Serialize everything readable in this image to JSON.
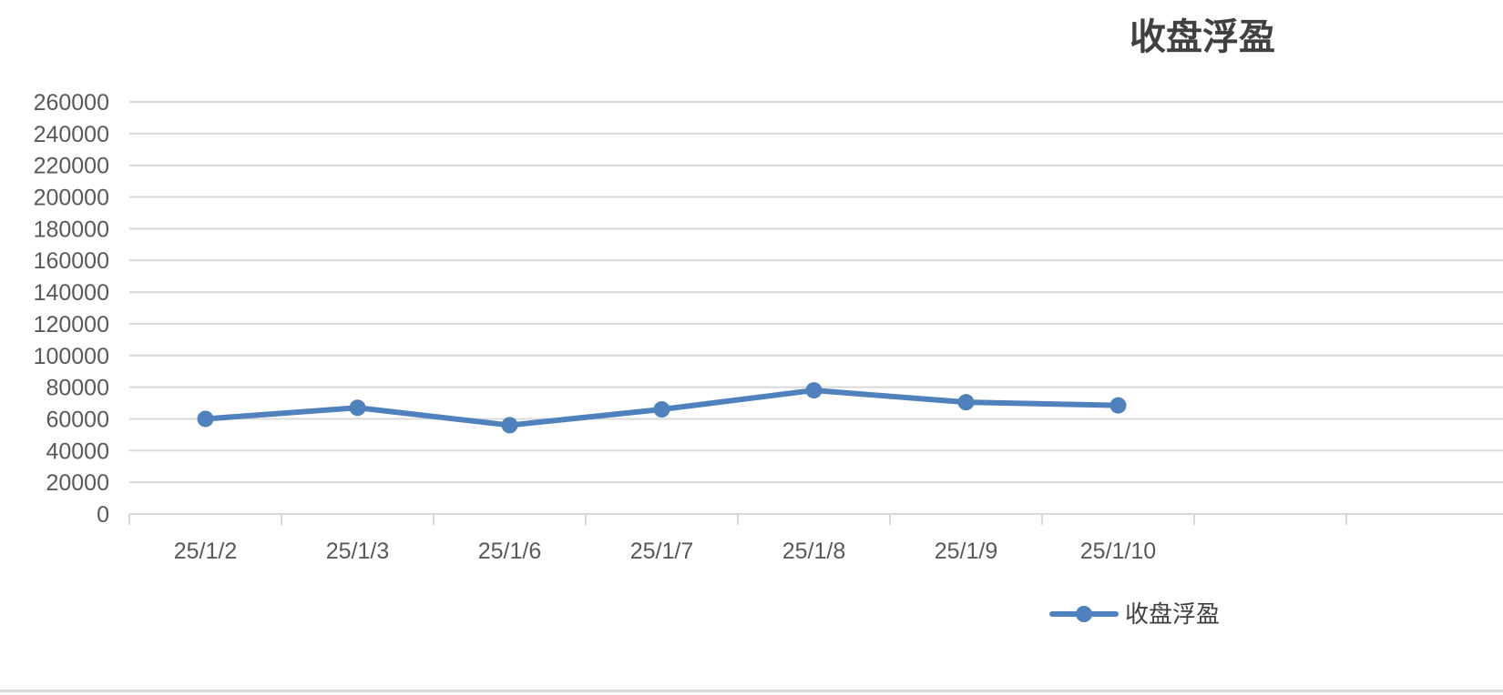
{
  "chart_data": {
    "type": "line",
    "title": "收盘浮盈",
    "xlabel": "",
    "ylabel": "",
    "categories": [
      "25/1/2",
      "25/1/3",
      "25/1/6",
      "25/1/7",
      "25/1/8",
      "25/1/9",
      "25/1/10"
    ],
    "category_slots": 8,
    "series": [
      {
        "name": "收盘浮盈",
        "values": [
          60000,
          67000,
          56000,
          66000,
          78000,
          70500,
          68500
        ]
      }
    ],
    "ylim": [
      0,
      260000
    ],
    "ytick_step": 20000,
    "grid": true,
    "legend_position": "bottom-right",
    "colors": {
      "series": "#4f81bd",
      "grid": "#d9d9d9",
      "axis_text": "#595959",
      "title": "#404040"
    }
  }
}
